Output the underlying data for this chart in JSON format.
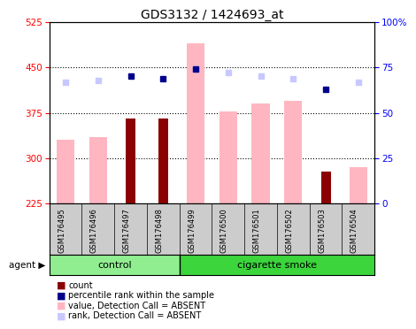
{
  "title": "GDS3132 / 1424693_at",
  "samples": [
    "GSM176495",
    "GSM176496",
    "GSM176497",
    "GSM176498",
    "GSM176499",
    "GSM176500",
    "GSM176501",
    "GSM176502",
    "GSM176503",
    "GSM176504"
  ],
  "groups": [
    "control",
    "control",
    "control",
    "control",
    "cigarette smoke",
    "cigarette smoke",
    "cigarette smoke",
    "cigarette smoke",
    "cigarette smoke",
    "cigarette smoke"
  ],
  "value_absent": [
    330,
    335,
    null,
    null,
    490,
    377,
    390,
    395,
    null,
    285
  ],
  "count_present": [
    null,
    null,
    365,
    365,
    null,
    null,
    null,
    null,
    278,
    null
  ],
  "rank_absent": [
    67,
    68,
    null,
    null,
    74,
    72,
    70,
    69,
    null,
    67
  ],
  "percentile_present": [
    null,
    null,
    70,
    69,
    74,
    null,
    null,
    null,
    63,
    null
  ],
  "ylim_left": [
    225,
    525
  ],
  "ylim_right": [
    0,
    100
  ],
  "yticks_left": [
    225,
    300,
    375,
    450,
    525
  ],
  "yticks_right": [
    0,
    25,
    50,
    75,
    100
  ],
  "color_count": "#8b0000",
  "color_percentile": "#00008b",
  "color_value_absent": "#ffb6c1",
  "color_rank_absent": "#c8c8ff",
  "bg_plot": "#ffffff",
  "bg_label": "#cccccc",
  "bg_control": "#90ee90",
  "bg_smoke": "#3cd53c",
  "legend_items": [
    {
      "color": "#8b0000",
      "label": "count"
    },
    {
      "color": "#00008b",
      "label": "percentile rank within the sample"
    },
    {
      "color": "#ffb6c1",
      "label": "value, Detection Call = ABSENT"
    },
    {
      "color": "#c8c8ff",
      "label": "rank, Detection Call = ABSENT"
    }
  ]
}
